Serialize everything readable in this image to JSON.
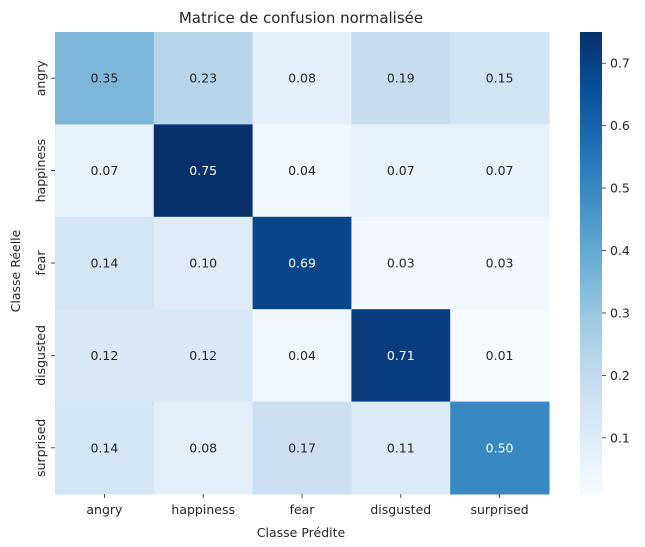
{
  "chart_data": {
    "type": "heatmap",
    "title": "Matrice de confusion normalisée",
    "xlabel": "Classe Prédite",
    "ylabel": "Classe Réelle",
    "x_categories": [
      "angry",
      "happiness",
      "fear",
      "disgusted",
      "surprised"
    ],
    "y_categories": [
      "angry",
      "happiness",
      "fear",
      "disgusted",
      "surprised"
    ],
    "values": [
      [
        0.35,
        0.23,
        0.08,
        0.19,
        0.15
      ],
      [
        0.07,
        0.75,
        0.04,
        0.07,
        0.07
      ],
      [
        0.14,
        0.1,
        0.69,
        0.03,
        0.03
      ],
      [
        0.12,
        0.12,
        0.04,
        0.71,
        0.01
      ],
      [
        0.14,
        0.08,
        0.17,
        0.11,
        0.5
      ]
    ],
    "cell_labels": [
      [
        "0.35",
        "0.23",
        "0.08",
        "0.19",
        "0.15"
      ],
      [
        "0.07",
        "0.75",
        "0.04",
        "0.07",
        "0.07"
      ],
      [
        "0.14",
        "0.10",
        "0.69",
        "0.03",
        "0.03"
      ],
      [
        "0.12",
        "0.12",
        "0.04",
        "0.71",
        "0.01"
      ],
      [
        "0.14",
        "0.08",
        "0.17",
        "0.11",
        "0.50"
      ]
    ],
    "colormap": "Blues",
    "colorbar": {
      "range": [
        0.01,
        0.75
      ],
      "ticks": [
        0.1,
        0.2,
        0.3,
        0.4,
        0.5,
        0.6,
        0.7
      ],
      "tick_labels": [
        "0.1",
        "0.2",
        "0.3",
        "0.4",
        "0.5",
        "0.6",
        "0.7"
      ]
    },
    "colors": {
      "blues": [
        "#f7fbff",
        "#deebf7",
        "#c6dbef",
        "#9ecae1",
        "#6baed6",
        "#4292c6",
        "#2171b5",
        "#08519c",
        "#08306b"
      ],
      "text_dark": "#262626",
      "text_light": "#ffffff"
    }
  }
}
